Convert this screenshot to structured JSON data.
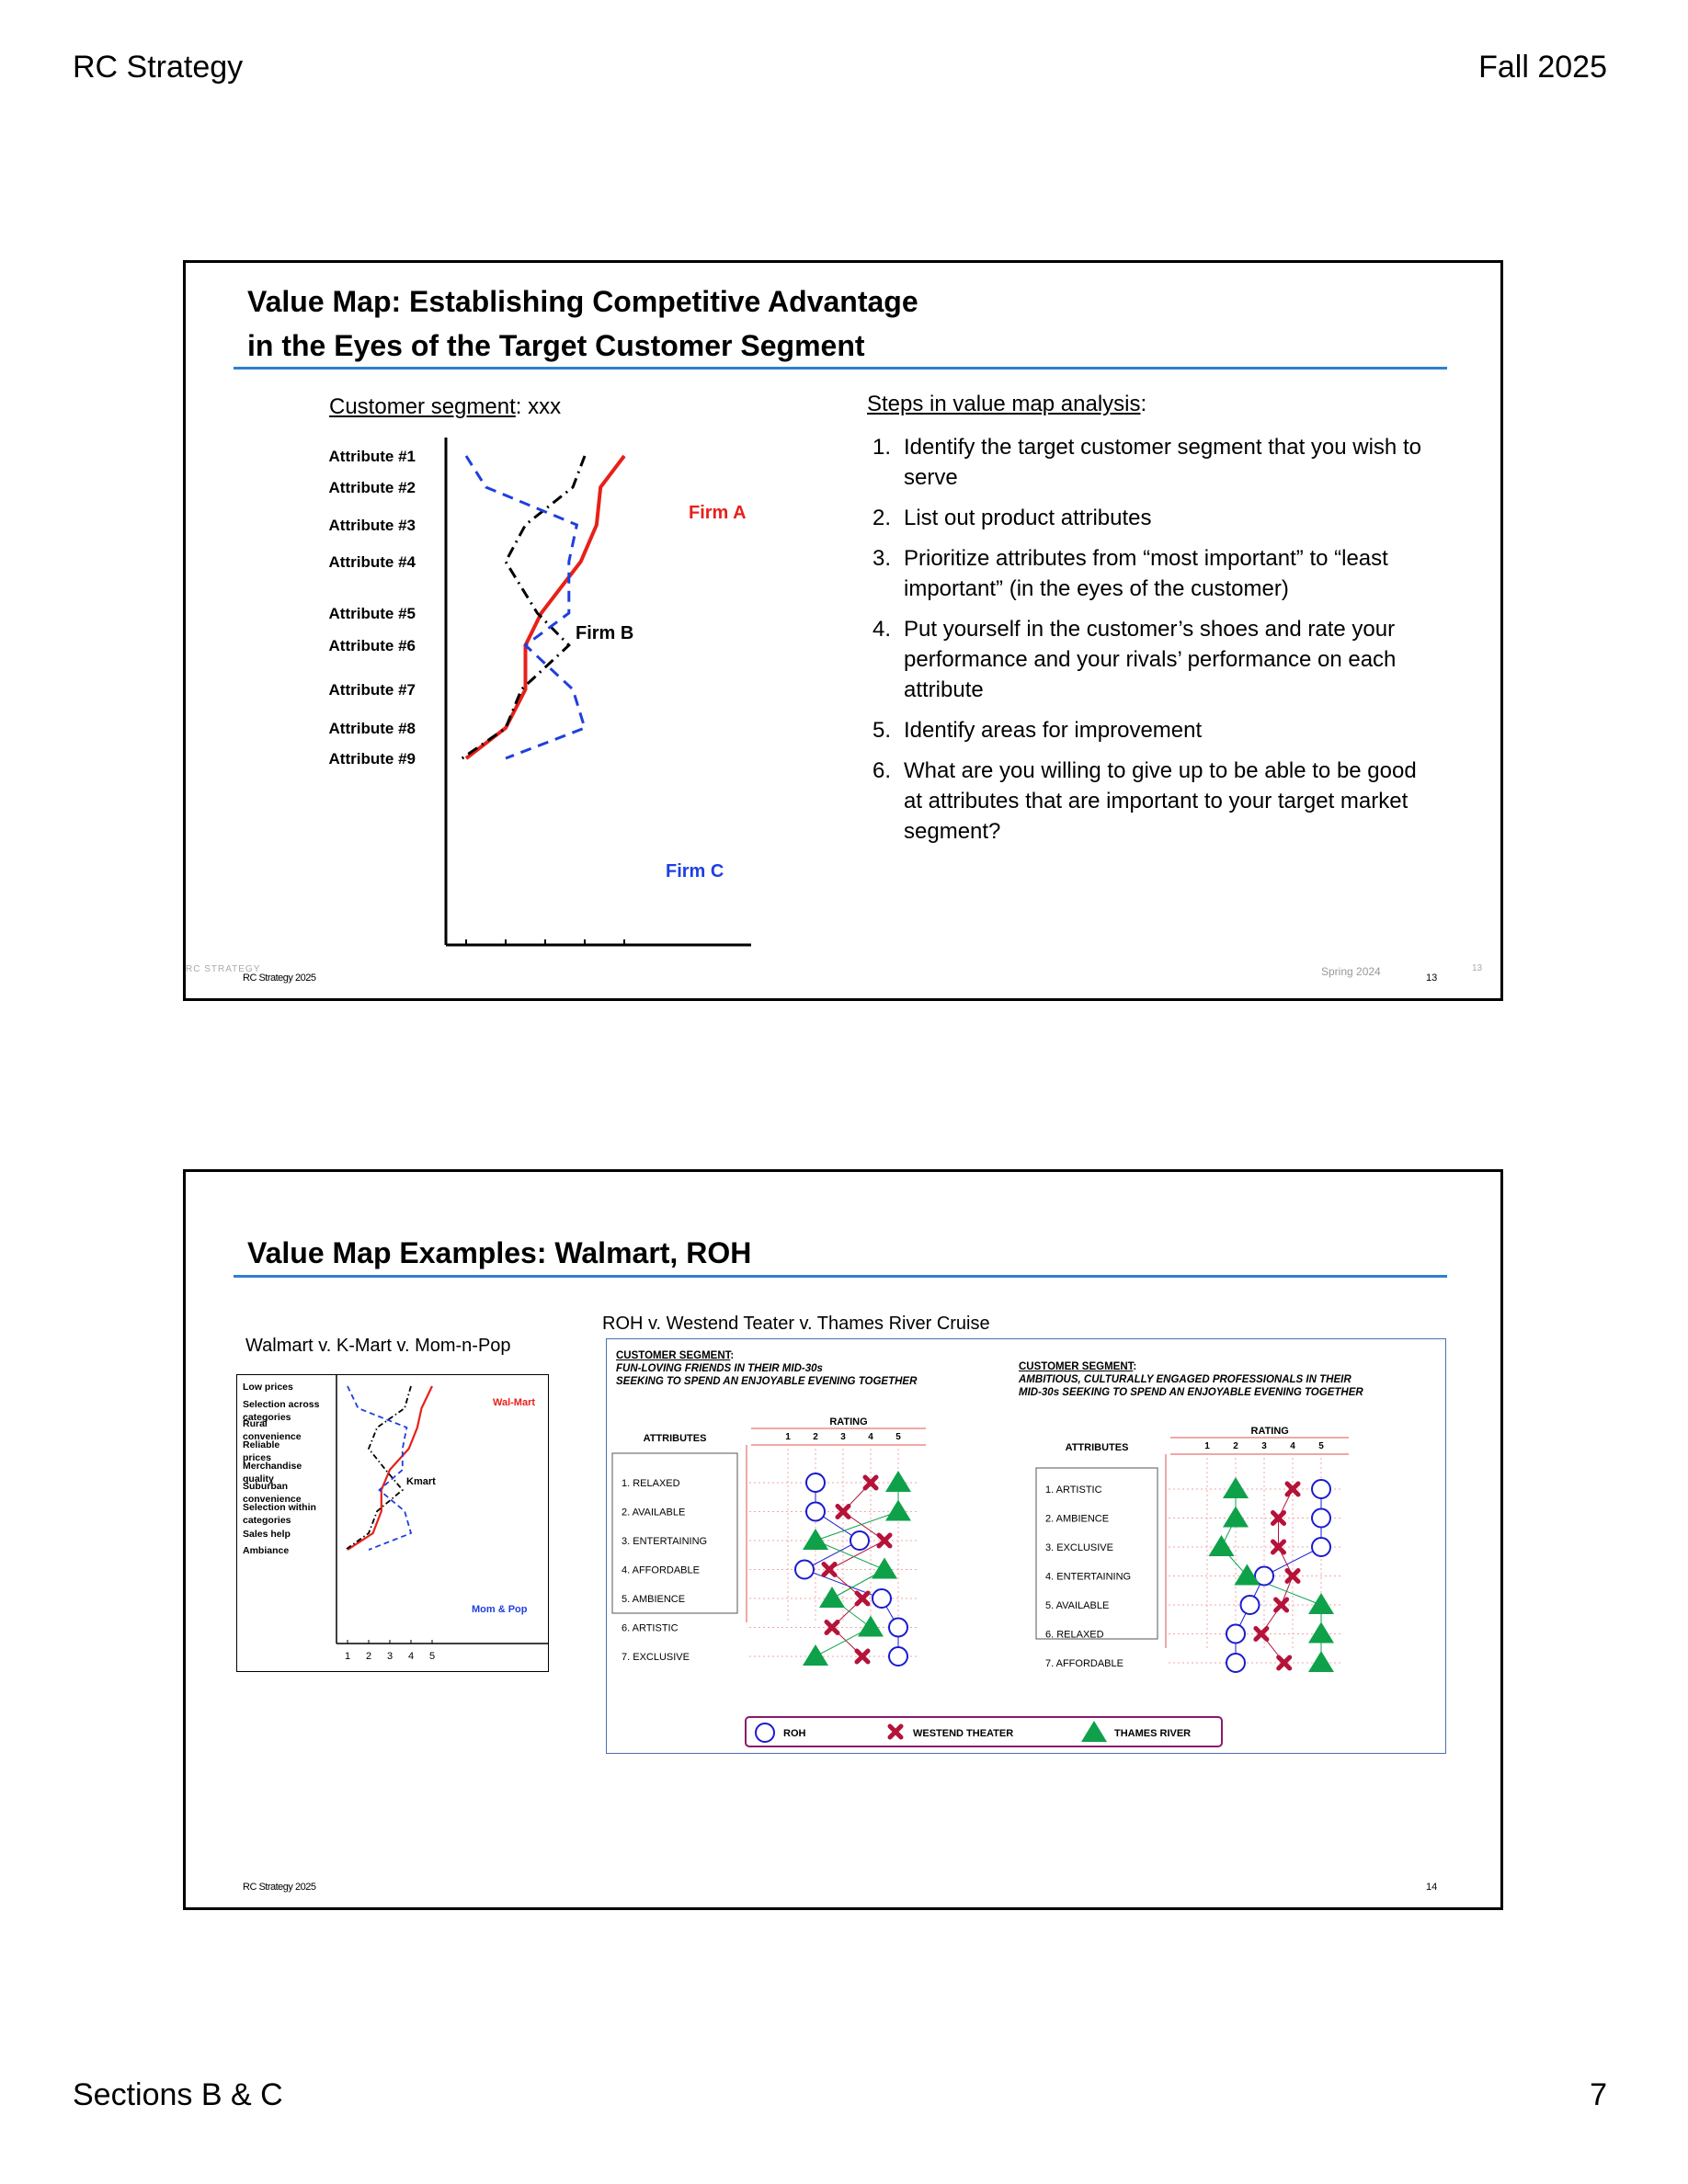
{
  "page": {
    "header_left": "RC Strategy",
    "header_right": "Fall 2025",
    "footer_left": "Sections B & C",
    "footer_right": "7"
  },
  "slide1": {
    "title_line1": "Value Map:  Establishing Competitive Advantage",
    "title_line2": "in the Eyes of the Target Customer Segment",
    "segment_label": "Customer segment",
    "segment_value": ": xxx",
    "steps_heading": "Steps in value map analysis",
    "steps_colon": ":",
    "steps": [
      {
        "num": "1.",
        "text": "Identify the target customer segment that you wish to serve"
      },
      {
        "num": "2.",
        "text": "List out product attributes"
      },
      {
        "num": "3.",
        "text": "Prioritize attributes from “most important” to “least important” (in the eyes of the customer)"
      },
      {
        "num": "4.",
        "text": "Put yourself in the customer’s shoes and rate your performance and your rivals’ performance on each attribute"
      },
      {
        "num": "5.",
        "text": "Identify areas for improvement"
      },
      {
        "num": "6.",
        "text": "What are you willing to give up to be able to be good at attributes that are important to your target market segment?"
      }
    ],
    "footer_left": "RC Strategy 2025",
    "footer_faint": "RC STRATEGY",
    "footer_mid": "Spring 2024",
    "footer_num": "13",
    "footer_num_faint": "13",
    "colors": {
      "firm_a": "#e8201a",
      "firm_b": "#000000",
      "firm_c": "#1f3fe0",
      "accent_rule": "#2f7fd0"
    }
  },
  "slide2": {
    "title": "Value Map Examples: Walmart, ROH",
    "walmart_caption": "Walmart v. K-Mart v. Mom-n-Pop",
    "roh_caption": "ROH v. Westend Teater v. Thames River Cruise",
    "footer_left": "RC Strategy 2025",
    "footer_num": "14",
    "panel1": {
      "segment_label": "CUSTOMER SEGMENT",
      "segment_colon": ":",
      "segment_line1": "FUN-LOVING FRIENDS IN THEIR MID-30s",
      "segment_line2": "SEEKING TO SPEND AN ENJOYABLE EVENING TOGETHER",
      "attributes_header": "ATTRIBUTES",
      "rating_header": "RATING"
    },
    "panel2": {
      "segment_label": "CUSTOMER SEGMENT",
      "segment_colon": ":",
      "segment_line1": "AMBITIOUS, CULTURALLY ENGAGED PROFESSIONALS IN THEIR",
      "segment_line2": "MID-30s SEEKING TO SPEND AN ENJOYABLE EVENING TOGETHER",
      "attributes_header": "ATTRIBUTES",
      "rating_header": "RATING"
    },
    "legend": {
      "roh": "ROH",
      "westend": "WESTEND THEATER",
      "thames": "THAMES RIVER"
    },
    "colors": {
      "walmart": "#e8201a",
      "kmart": "#000000",
      "mompop": "#1f3fe0",
      "roh": "#1a1ad0",
      "westend": "#b5123a",
      "thames": "#0fa14a",
      "frame": "#8a1a6a"
    }
  },
  "chart_data": [
    {
      "type": "line",
      "title": "Customer segment: xxx",
      "orientation": "horizontal-rating",
      "categories": [
        "Attribute #1",
        "Attribute #2",
        "Attribute #3",
        "Attribute #4",
        "Attribute #5",
        "Attribute #6",
        "Attribute #7",
        "Attribute #8",
        "Attribute #9"
      ],
      "x_ticks": [
        "1",
        "2",
        "3",
        "4",
        "5"
      ],
      "xlim": [
        1,
        5
      ],
      "series": [
        {
          "name": "Firm A",
          "style": "solid",
          "color": "#e8201a",
          "values": [
            5,
            4.4,
            4.3,
            3.9,
            2.9,
            2.5,
            2.5,
            2.0,
            1.0
          ]
        },
        {
          "name": "Firm B",
          "style": "dash-dot",
          "color": "#000000",
          "values": [
            4.0,
            3.7,
            2.5,
            2.0,
            2.8,
            3.6,
            2.4,
            2.0,
            0.9
          ]
        },
        {
          "name": "Firm C",
          "style": "dashed",
          "color": "#1f3fe0",
          "values": [
            1.0,
            1.5,
            3.8,
            3.6,
            3.6,
            2.5,
            3.7,
            4.0,
            2.0
          ]
        }
      ]
    },
    {
      "type": "line",
      "title": "Walmart v. K-Mart v. Mom-n-Pop",
      "orientation": "horizontal-rating",
      "categories": [
        "Low prices",
        "Selection across categories",
        "Rural convenience",
        "Reliable prices",
        "Merchandise quality",
        "Suburban convenience",
        "Selection within categories",
        "Sales help",
        "Ambiance"
      ],
      "x_ticks": [
        "1",
        "2",
        "3",
        "4",
        "5"
      ],
      "xlim": [
        1,
        5
      ],
      "series": [
        {
          "name": "Wal-Mart",
          "style": "solid",
          "color": "#e8201a",
          "values": [
            5.0,
            4.5,
            4.3,
            3.9,
            3.0,
            2.6,
            2.6,
            2.2,
            1.0
          ]
        },
        {
          "name": "Kmart",
          "style": "dash-dot",
          "color": "#000000",
          "values": [
            4.0,
            3.7,
            2.4,
            2.0,
            2.8,
            3.6,
            2.4,
            2.0,
            0.9
          ]
        },
        {
          "name": "Mom & Pop",
          "style": "dashed",
          "color": "#1f3fe0",
          "values": [
            1.0,
            1.5,
            3.8,
            3.6,
            3.6,
            2.5,
            3.7,
            4.0,
            2.0
          ]
        }
      ]
    },
    {
      "type": "scatter",
      "title": "FUN-LOVING FRIENDS IN THEIR MID-30s SEEKING TO SPEND AN ENJOYABLE EVENING TOGETHER",
      "categories": [
        "1.  RELAXED",
        "2.  AVAILABLE",
        "3.  ENTERTAINING",
        "4.  AFFORDABLE",
        "5.  AMBIENCE",
        "6.  ARTISTIC",
        "7.  EXCLUSIVE"
      ],
      "x_ticks": [
        "1",
        "2",
        "3",
        "4",
        "5"
      ],
      "xlim": [
        1,
        5
      ],
      "series": [
        {
          "name": "ROH",
          "marker": "circle",
          "color": "#1a1ad0",
          "values": [
            2,
            2,
            3.6,
            1.6,
            4.4,
            5,
            5
          ]
        },
        {
          "name": "WESTEND THEATER",
          "marker": "x",
          "color": "#b5123a",
          "values": [
            4,
            3,
            4.5,
            2.5,
            3.7,
            2.6,
            3.7
          ]
        },
        {
          "name": "THAMES RIVER",
          "marker": "triangle",
          "color": "#0fa14a",
          "values": [
            5,
            5,
            2,
            4.5,
            2.6,
            4,
            2
          ]
        }
      ]
    },
    {
      "type": "scatter",
      "title": "AMBITIOUS, CULTURALLY ENGAGED PROFESSIONALS IN THEIR MID-30s SEEKING TO SPEND AN ENJOYABLE EVENING TOGETHER",
      "categories": [
        "1.  ARTISTIC",
        "2.  AMBIENCE",
        "3.  EXCLUSIVE",
        "4.  ENTERTAINING",
        "5.  AVAILABLE",
        "6.  RELAXED",
        "7.  AFFORDABLE"
      ],
      "x_ticks": [
        "1",
        "2",
        "3",
        "4",
        "5"
      ],
      "xlim": [
        1,
        5
      ],
      "series": [
        {
          "name": "ROH",
          "marker": "circle",
          "color": "#1a1ad0",
          "values": [
            5,
            5,
            5,
            3,
            2.5,
            2,
            2
          ]
        },
        {
          "name": "WESTEND THEATER",
          "marker": "x",
          "color": "#b5123a",
          "values": [
            4,
            3.5,
            3.5,
            4,
            3.6,
            2.9,
            3.7
          ]
        },
        {
          "name": "THAMES RIVER",
          "marker": "triangle",
          "color": "#0fa14a",
          "values": [
            2,
            2,
            1.5,
            2.4,
            5,
            5,
            5
          ]
        }
      ]
    }
  ]
}
